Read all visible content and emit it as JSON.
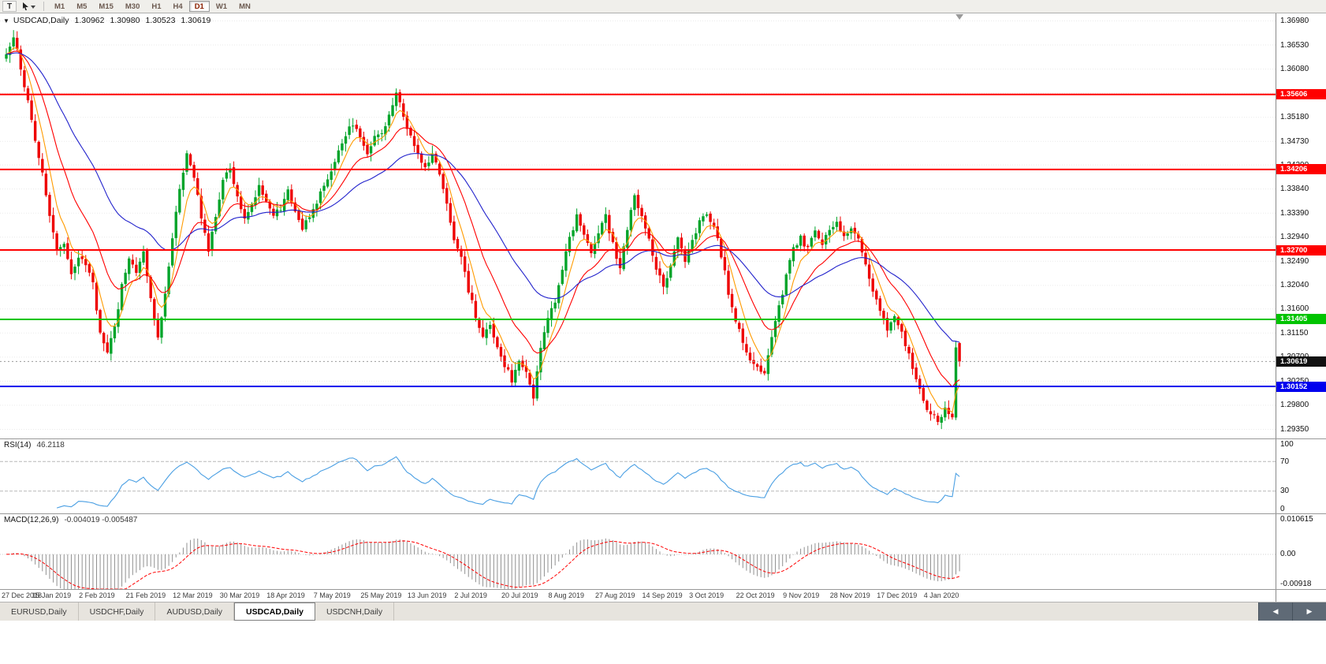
{
  "toolbar": {
    "chart_tool_label": "T",
    "timeframes": [
      "M1",
      "M5",
      "M15",
      "M30",
      "H1",
      "H4",
      "D1",
      "W1",
      "MN"
    ],
    "active_timeframe": "D1"
  },
  "chart_header": {
    "symbol_label": "USDCAD,Daily",
    "open": "1.30962",
    "high": "1.30980",
    "low": "1.30523",
    "close": "1.30619"
  },
  "chart_data": {
    "type": "candlestick",
    "symbol": "USDCAD",
    "period": "Daily",
    "candle_count": 265,
    "candles_per_x_label": 13,
    "price_range": [
      1.2918,
      1.3712
    ],
    "y_ticks": [
      "1.36980",
      "1.36530",
      "1.36080",
      "1.35630",
      "1.35180",
      "1.34730",
      "1.34290",
      "1.33840",
      "1.33390",
      "1.32940",
      "1.32490",
      "1.32040",
      "1.31600",
      "1.31150",
      "1.30700",
      "1.30250",
      "1.29800",
      "1.29350"
    ],
    "x_labels": [
      "27 Dec 2018",
      "15 Jan 2019",
      "2 Feb 2019",
      "21 Feb 2019",
      "12 Mar 2019",
      "30 Mar 2019",
      "18 Apr 2019",
      "7 May 2019",
      "25 May 2019",
      "13 Jun 2019",
      "2 Jul 2019",
      "20 Jul 2019",
      "8 Aug 2019",
      "27 Aug 2019",
      "14 Sep 2019",
      "3 Oct 2019",
      "22 Oct 2019",
      "9 Nov 2019",
      "28 Nov 2019",
      "17 Dec 2019",
      "4 Jan 2020"
    ],
    "close_waypoints": [
      [
        0,
        1.3638
      ],
      [
        2,
        1.3662
      ],
      [
        3,
        1.3645
      ],
      [
        5,
        1.358
      ],
      [
        6,
        1.3545
      ],
      [
        8,
        1.347
      ],
      [
        10,
        1.3415
      ],
      [
        12,
        1.333
      ],
      [
        14,
        1.3265
      ],
      [
        16,
        1.328
      ],
      [
        18,
        1.323
      ],
      [
        20,
        1.3258
      ],
      [
        22,
        1.324
      ],
      [
        24,
        1.3205
      ],
      [
        26,
        1.3115
      ],
      [
        28,
        1.3078
      ],
      [
        30,
        1.3125
      ],
      [
        32,
        1.3205
      ],
      [
        34,
        1.3252
      ],
      [
        36,
        1.3225
      ],
      [
        38,
        1.3262
      ],
      [
        40,
        1.3185
      ],
      [
        42,
        1.3108
      ],
      [
        44,
        1.319
      ],
      [
        46,
        1.3292
      ],
      [
        48,
        1.3388
      ],
      [
        50,
        1.3448
      ],
      [
        52,
        1.3408
      ],
      [
        54,
        1.333
      ],
      [
        56,
        1.3272
      ],
      [
        58,
        1.3332
      ],
      [
        60,
        1.3405
      ],
      [
        62,
        1.342
      ],
      [
        64,
        1.3372
      ],
      [
        66,
        1.3332
      ],
      [
        68,
        1.3356
      ],
      [
        70,
        1.339
      ],
      [
        72,
        1.336
      ],
      [
        74,
        1.3338
      ],
      [
        76,
        1.3348
      ],
      [
        78,
        1.3378
      ],
      [
        80,
        1.3342
      ],
      [
        82,
        1.3312
      ],
      [
        84,
        1.3332
      ],
      [
        86,
        1.3362
      ],
      [
        88,
        1.3388
      ],
      [
        90,
        1.342
      ],
      [
        92,
        1.3452
      ],
      [
        94,
        1.3486
      ],
      [
        96,
        1.3506
      ],
      [
        98,
        1.3478
      ],
      [
        100,
        1.3452
      ],
      [
        102,
        1.3478
      ],
      [
        104,
        1.3492
      ],
      [
        106,
        1.3522
      ],
      [
        108,
        1.3562
      ],
      [
        110,
        1.3522
      ],
      [
        112,
        1.3482
      ],
      [
        114,
        1.3452
      ],
      [
        116,
        1.3422
      ],
      [
        118,
        1.3446
      ],
      [
        120,
        1.3415
      ],
      [
        122,
        1.3352
      ],
      [
        124,
        1.3292
      ],
      [
        126,
        1.3252
      ],
      [
        128,
        1.3196
      ],
      [
        130,
        1.3146
      ],
      [
        132,
        1.3112
      ],
      [
        134,
        1.3132
      ],
      [
        136,
        1.3086
      ],
      [
        138,
        1.3056
      ],
      [
        140,
        1.3026
      ],
      [
        142,
        1.3062
      ],
      [
        144,
        1.3038
      ],
      [
        146,
        1.2998
      ],
      [
        148,
        1.3092
      ],
      [
        150,
        1.3142
      ],
      [
        152,
        1.3172
      ],
      [
        154,
        1.3232
      ],
      [
        156,
        1.3292
      ],
      [
        158,
        1.3332
      ],
      [
        160,
        1.3302
      ],
      [
        162,
        1.3262
      ],
      [
        164,
        1.3302
      ],
      [
        166,
        1.3332
      ],
      [
        168,
        1.3282
      ],
      [
        170,
        1.3232
      ],
      [
        172,
        1.3312
      ],
      [
        174,
        1.3372
      ],
      [
        176,
        1.3332
      ],
      [
        178,
        1.3292
      ],
      [
        180,
        1.3232
      ],
      [
        182,
        1.3202
      ],
      [
        184,
        1.3242
      ],
      [
        186,
        1.3292
      ],
      [
        188,
        1.3252
      ],
      [
        190,
        1.3292
      ],
      [
        192,
        1.3322
      ],
      [
        194,
        1.3342
      ],
      [
        196,
        1.3312
      ],
      [
        198,
        1.3262
      ],
      [
        200,
        1.3192
      ],
      [
        202,
        1.3142
      ],
      [
        204,
        1.3102
      ],
      [
        206,
        1.3066
      ],
      [
        208,
        1.3048
      ],
      [
        210,
        1.304
      ],
      [
        212,
        1.3102
      ],
      [
        214,
        1.3162
      ],
      [
        216,
        1.3222
      ],
      [
        218,
        1.3272
      ],
      [
        220,
        1.3292
      ],
      [
        222,
        1.3272
      ],
      [
        224,
        1.3302
      ],
      [
        226,
        1.3282
      ],
      [
        228,
        1.3306
      ],
      [
        230,
        1.3322
      ],
      [
        232,
        1.3292
      ],
      [
        234,
        1.3312
      ],
      [
        236,
        1.3292
      ],
      [
        238,
        1.3242
      ],
      [
        240,
        1.3192
      ],
      [
        242,
        1.3152
      ],
      [
        244,
        1.3122
      ],
      [
        246,
        1.3142
      ],
      [
        248,
        1.3112
      ],
      [
        250,
        1.3072
      ],
      [
        252,
        1.3032
      ],
      [
        254,
        1.2992
      ],
      [
        256,
        1.2962
      ],
      [
        258,
        1.2952
      ],
      [
        260,
        1.2972
      ],
      [
        262,
        1.2958
      ],
      [
        263,
        1.3093
      ],
      [
        264,
        1.30619
      ]
    ],
    "last_candle": {
      "open": 1.30962,
      "high": 1.3098,
      "low": 1.30523,
      "close": 1.30619
    },
    "colors": {
      "up": "#00a42a",
      "down": "#ee0000",
      "grid": "#eaeaea"
    },
    "overlays": [
      {
        "name": "ma-fast",
        "type": "ema",
        "period": 6,
        "color": "#ff9b00"
      },
      {
        "name": "ma-mid",
        "type": "ema",
        "period": 16,
        "color": "#ff0000"
      },
      {
        "name": "ma-slow",
        "type": "ema",
        "period": 40,
        "color": "#2222cc"
      }
    ],
    "horizontal_lines": [
      {
        "price": 1.35606,
        "label": "1.35606",
        "color": "#ff0000"
      },
      {
        "price": 1.34206,
        "label": "1.34206",
        "color": "#ff0000"
      },
      {
        "price": 1.327,
        "label": "1.32700",
        "color": "#ff0000"
      },
      {
        "price": 1.31405,
        "label": "1.31405",
        "color": "#00c400"
      },
      {
        "price": 1.30152,
        "label": "1.30152",
        "color": "#0000ee"
      }
    ],
    "current_price": {
      "value": 1.30619,
      "label": "1.30619",
      "tag_color": "#111111"
    },
    "rsi": {
      "title": "RSI(14)",
      "period": 14,
      "value_text": "46.2118",
      "color": "#4a9fe3",
      "levels": [
        70,
        30
      ],
      "axis_labels": [
        "100",
        "70",
        "30",
        "0"
      ]
    },
    "macd": {
      "title": "MACD(12,26,9)",
      "fast": 12,
      "slow": 26,
      "signal": 9,
      "values_text": "-0.004019 -0.005487",
      "histogram_color": "#909090",
      "signal_color": "#ff0000",
      "axis_labels": [
        "0.010615",
        "0.00",
        "-0.00918"
      ],
      "range": [
        -0.00918,
        0.010615
      ]
    }
  },
  "tabs": {
    "items": [
      "EURUSD,Daily",
      "USDCHF,Daily",
      "AUDUSD,Daily",
      "USDCAD,Daily",
      "USDCNH,Daily"
    ],
    "active": "USDCAD,Daily"
  }
}
